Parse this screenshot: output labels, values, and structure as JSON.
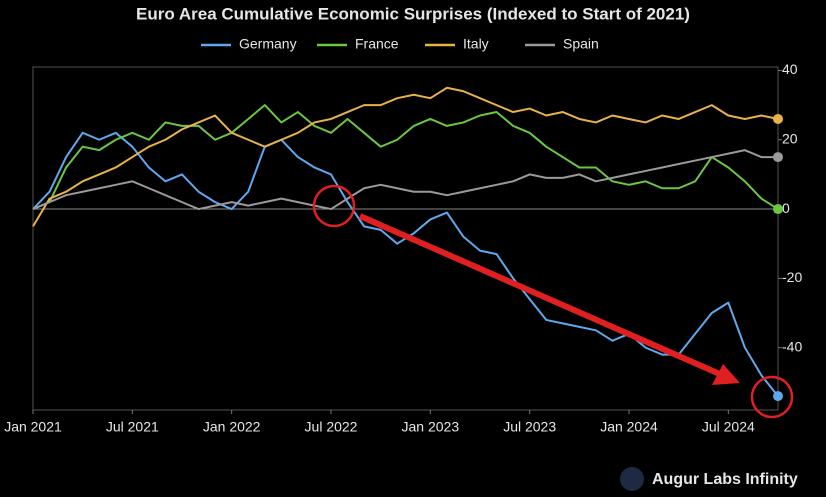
{
  "chart_data": {
    "type": "line",
    "title": "Euro Area Cumulative Economic Surprises (Indexed to Start of 2021)",
    "watermark": "Augur Labs Infinity",
    "x": [
      "2021-01",
      "2021-02",
      "2021-03",
      "2021-04",
      "2021-05",
      "2021-06",
      "2021-07",
      "2021-08",
      "2021-09",
      "2021-10",
      "2021-11",
      "2021-12",
      "2022-01",
      "2022-02",
      "2022-03",
      "2022-04",
      "2022-05",
      "2022-06",
      "2022-07",
      "2022-08",
      "2022-09",
      "2022-10",
      "2022-11",
      "2022-12",
      "2023-01",
      "2023-02",
      "2023-03",
      "2023-04",
      "2023-05",
      "2023-06",
      "2023-07",
      "2023-08",
      "2023-09",
      "2023-10",
      "2023-11",
      "2023-12",
      "2024-01",
      "2024-02",
      "2024-03",
      "2024-04",
      "2024-05",
      "2024-06",
      "2024-07",
      "2024-08",
      "2024-09",
      "2024-10"
    ],
    "series": [
      {
        "name": "Germany",
        "color": "#5fa8ee",
        "values": [
          0,
          5,
          15,
          22,
          20,
          22,
          18,
          12,
          8,
          10,
          5,
          2,
          0,
          5,
          18,
          20,
          15,
          12,
          10,
          2,
          -5,
          -6,
          -10,
          -7,
          -3,
          -1,
          -8,
          -12,
          -13,
          -20,
          -26,
          -32,
          -33,
          -34,
          -35,
          -38,
          -36,
          -40,
          -42,
          -42,
          -36,
          -30,
          -27,
          -40,
          -48,
          -54
        ]
      },
      {
        "name": "France",
        "color": "#6cc644",
        "values": [
          0,
          2,
          12,
          18,
          17,
          20,
          22,
          20,
          25,
          24,
          24,
          20,
          22,
          26,
          30,
          25,
          28,
          24,
          22,
          26,
          22,
          18,
          20,
          24,
          26,
          24,
          25,
          27,
          28,
          24,
          22,
          18,
          15,
          12,
          12,
          8,
          7,
          8,
          6,
          6,
          8,
          15,
          12,
          8,
          3,
          0
        ]
      },
      {
        "name": "Italy",
        "color": "#e8b24a",
        "values": [
          -5,
          3,
          5,
          8,
          10,
          12,
          15,
          18,
          20,
          23,
          25,
          27,
          22,
          20,
          18,
          20,
          22,
          25,
          26,
          28,
          30,
          30,
          32,
          33,
          32,
          35,
          34,
          32,
          30,
          28,
          29,
          27,
          28,
          26,
          25,
          27,
          26,
          25,
          27,
          26,
          28,
          30,
          27,
          26,
          27,
          26
        ]
      },
      {
        "name": "Spain",
        "color": "#9a9a9a",
        "values": [
          0,
          2,
          4,
          5,
          6,
          7,
          8,
          6,
          4,
          2,
          0,
          1,
          2,
          1,
          2,
          3,
          2,
          1,
          0,
          3,
          6,
          7,
          6,
          5,
          5,
          4,
          5,
          6,
          7,
          8,
          10,
          9,
          9,
          10,
          8,
          9,
          10,
          11,
          12,
          13,
          14,
          15,
          16,
          17,
          15,
          15
        ]
      }
    ],
    "xlim": [
      "2021-01",
      "2024-10"
    ],
    "xticks": [
      {
        "value": "2021-01",
        "label": "Jan 2021"
      },
      {
        "value": "2021-07",
        "label": "Jul 2021"
      },
      {
        "value": "2022-01",
        "label": "Jan 2022"
      },
      {
        "value": "2022-07",
        "label": "Jul 2022"
      },
      {
        "value": "2023-01",
        "label": "Jan 2023"
      },
      {
        "value": "2023-07",
        "label": "Jul 2023"
      },
      {
        "value": "2024-01",
        "label": "Jan 2024"
      },
      {
        "value": "2024-07",
        "label": "Jul 2024"
      }
    ],
    "ylim": [
      -58,
      41
    ],
    "yticks": [
      -40,
      -20,
      0,
      20,
      40
    ],
    "zero_line": true,
    "end_markers": true,
    "legend": "top"
  }
}
